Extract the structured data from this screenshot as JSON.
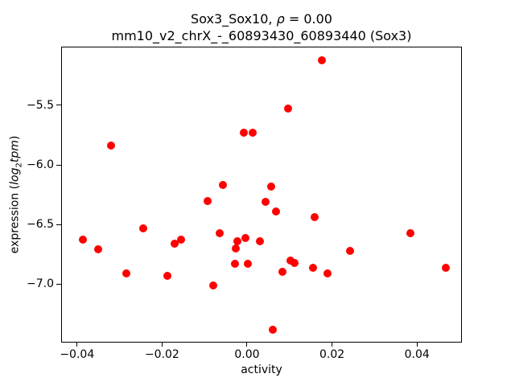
{
  "figure": {
    "title_line1": {
      "prefix": "Sox3_Sox10, ",
      "rho": "ρ",
      "suffix": " = 0.00"
    },
    "title_line2": "mm10_v2_chrX_-_60893430_60893440 (Sox3)",
    "xlabel": "activity",
    "ylabel": {
      "prefix": "expression (",
      "log": "log",
      "sub": "2",
      "tpm": "tpm",
      "suffix": ")"
    }
  },
  "chart_data": {
    "type": "scatter",
    "title": "Sox3_Sox10, ρ = 0.00",
    "subtitle": "mm10_v2_chrX_-_60893430_60893440 (Sox3)",
    "xlabel": "activity",
    "ylabel": "expression (log2 tpm)",
    "marker_color": "#ff0000",
    "grid": false,
    "legend": "none",
    "xlim": [
      -0.04356,
      0.05038
    ],
    "ylim": [
      -7.4837,
      -5.0142
    ],
    "x_ticks": [
      {
        "value": -0.04,
        "label": "−0.04"
      },
      {
        "value": -0.02,
        "label": "−0.02"
      },
      {
        "value": 0.0,
        "label": "0.00"
      },
      {
        "value": 0.02,
        "label": "0.02"
      },
      {
        "value": 0.04,
        "label": "0.04"
      }
    ],
    "y_ticks": [
      {
        "value": -5.5,
        "label": "−5.5"
      },
      {
        "value": -6.0,
        "label": "−6.0"
      },
      {
        "value": -6.5,
        "label": "−6.5"
      },
      {
        "value": -7.0,
        "label": "−7.0"
      }
    ],
    "points": [
      {
        "x": -0.0386,
        "y": -6.63
      },
      {
        "x": -0.0351,
        "y": -6.71
      },
      {
        "x": -0.0321,
        "y": -5.84
      },
      {
        "x": -0.0285,
        "y": -6.91
      },
      {
        "x": -0.0245,
        "y": -6.53
      },
      {
        "x": -0.0188,
        "y": -6.93
      },
      {
        "x": -0.017,
        "y": -6.66
      },
      {
        "x": -0.0156,
        "y": -6.63
      },
      {
        "x": -0.0093,
        "y": -6.3
      },
      {
        "x": -0.008,
        "y": -7.01
      },
      {
        "x": -0.0064,
        "y": -6.57
      },
      {
        "x": -0.0056,
        "y": -6.17
      },
      {
        "x": -0.0028,
        "y": -6.83
      },
      {
        "x": -0.0026,
        "y": -6.7
      },
      {
        "x": -0.0023,
        "y": -6.64
      },
      {
        "x": -0.0008,
        "y": -5.73
      },
      {
        "x": -0.0004,
        "y": -6.61
      },
      {
        "x": 0.0001,
        "y": -6.83
      },
      {
        "x": 0.0014,
        "y": -5.73
      },
      {
        "x": 0.003,
        "y": -6.64
      },
      {
        "x": 0.0044,
        "y": -6.31
      },
      {
        "x": 0.0057,
        "y": -6.18
      },
      {
        "x": 0.0061,
        "y": -7.38
      },
      {
        "x": 0.0068,
        "y": -6.39
      },
      {
        "x": 0.0083,
        "y": -6.9
      },
      {
        "x": 0.0097,
        "y": -5.53
      },
      {
        "x": 0.0102,
        "y": -6.8
      },
      {
        "x": 0.0112,
        "y": -6.82
      },
      {
        "x": 0.0156,
        "y": -6.86
      },
      {
        "x": 0.016,
        "y": -6.44
      },
      {
        "x": 0.0176,
        "y": -5.12
      },
      {
        "x": 0.019,
        "y": -6.91
      },
      {
        "x": 0.0242,
        "y": -6.72
      },
      {
        "x": 0.0385,
        "y": -6.57
      },
      {
        "x": 0.0467,
        "y": -6.86
      }
    ]
  }
}
